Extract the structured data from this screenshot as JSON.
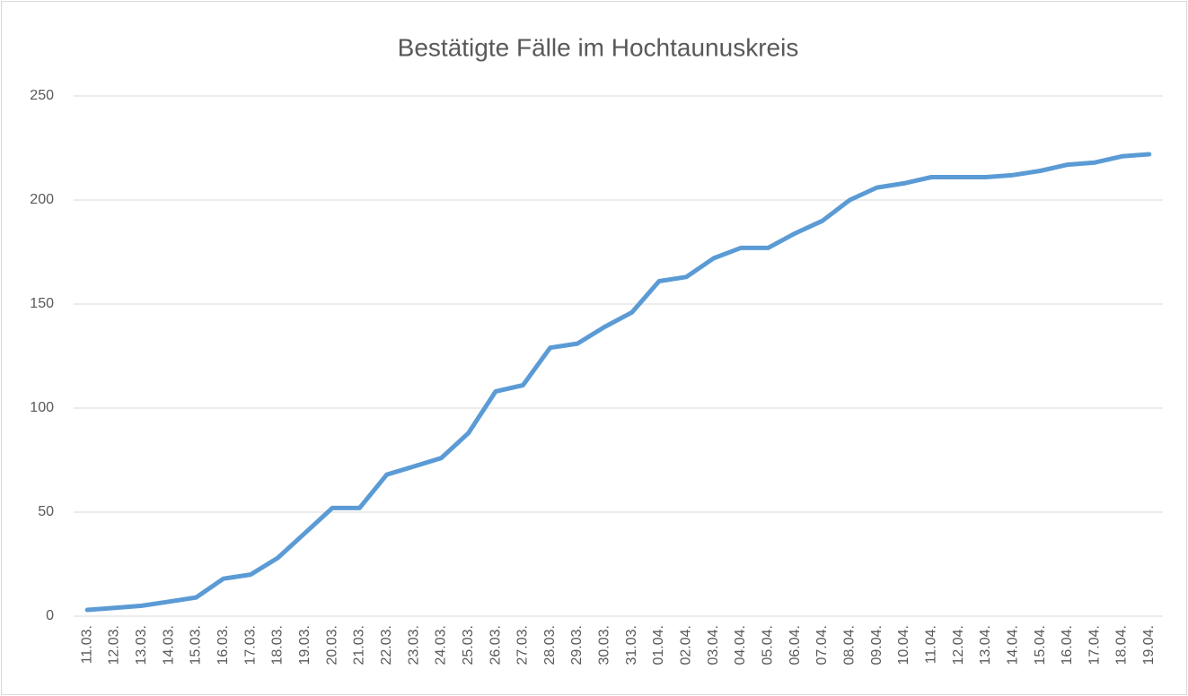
{
  "chart_data": {
    "type": "line",
    "title": "Bestätigte Fälle im Hochtaunuskreis",
    "categories": [
      "11.03.",
      "12.03.",
      "13.03.",
      "14.03.",
      "15.03.",
      "16.03.",
      "17.03.",
      "18.03.",
      "19.03.",
      "20.03.",
      "21.03.",
      "22.03.",
      "23.03.",
      "24.03.",
      "25.03.",
      "26.03.",
      "27.03.",
      "28.03.",
      "29.03.",
      "30.03.",
      "31.03.",
      "01.04.",
      "02.04.",
      "03.04.",
      "04.04.",
      "05.04.",
      "06.04.",
      "07.04.",
      "08.04.",
      "09.04.",
      "10.04.",
      "11.04.",
      "12.04.",
      "13.04.",
      "14.04.",
      "15.04.",
      "16.04.",
      "17.04.",
      "18.04.",
      "19.04."
    ],
    "values": [
      3,
      4,
      5,
      7,
      9,
      18,
      20,
      28,
      40,
      52,
      52,
      68,
      72,
      76,
      88,
      108,
      111,
      129,
      131,
      139,
      146,
      161,
      163,
      172,
      177,
      177,
      184,
      190,
      200,
      206,
      208,
      211,
      211,
      211,
      212,
      214,
      217,
      218,
      221,
      222
    ],
    "color": "#5b9bd5",
    "ylim": [
      0,
      250
    ],
    "yticks": [
      0,
      50,
      100,
      150,
      200,
      250
    ],
    "grid": true
  }
}
